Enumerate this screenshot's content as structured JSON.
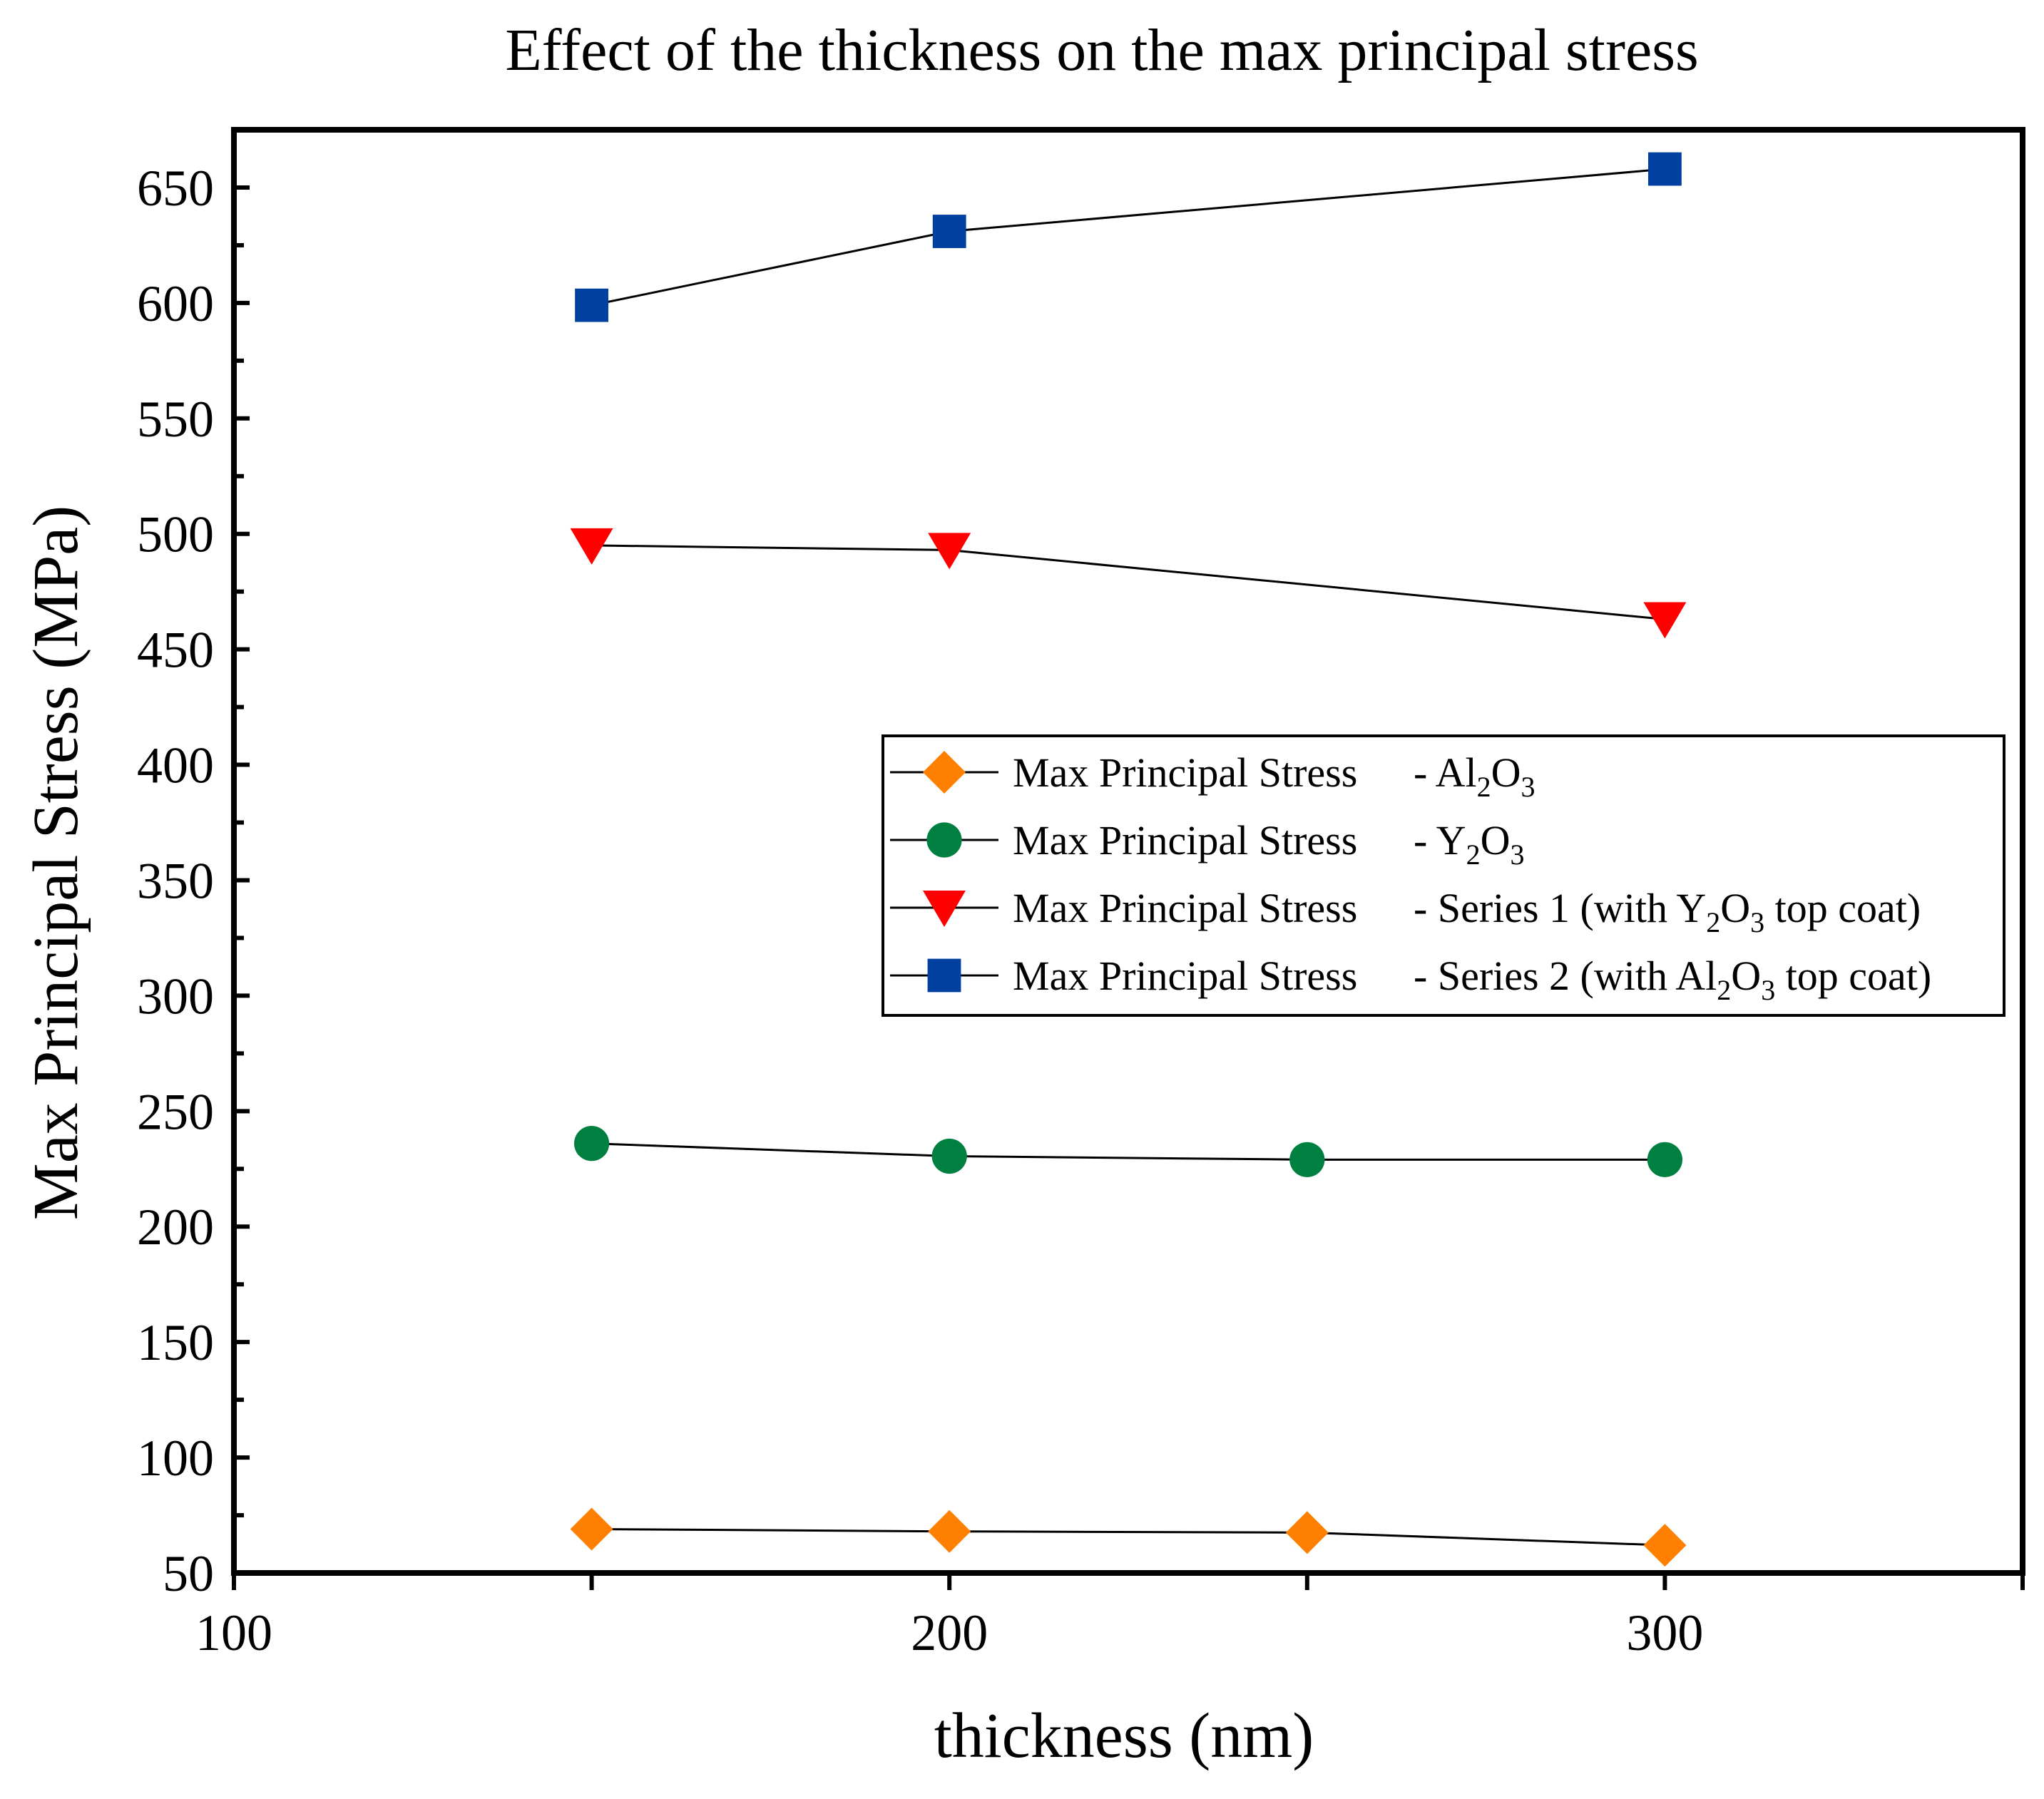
{
  "chart_data": {
    "type": "line",
    "title": "Effect of the thickness on the max principal stress",
    "xlabel": "thickness (nm)",
    "ylabel": "Max Principal Stress (MPa)",
    "xlim": [
      100,
      350
    ],
    "ylim": [
      50,
      675
    ],
    "xticks": [
      100,
      200,
      300
    ],
    "xtick_labels": [
      "100",
      "200",
      "300"
    ],
    "yticks": [
      50,
      100,
      150,
      200,
      250,
      300,
      350,
      400,
      450,
      500,
      550,
      600,
      650
    ],
    "ytick_labels": [
      "50",
      "100",
      "150",
      "200",
      "250",
      "300",
      "350",
      "400",
      "450",
      "500",
      "550",
      "600",
      "650"
    ],
    "legend_position": "center-right",
    "series": [
      {
        "name": "Max Principal Stress - Al2O3",
        "legend_main": "Max Principal Stress",
        "legend_suffix": [
          [
            "- Al",
            ""
          ],
          [
            "2",
            "sub"
          ],
          [
            "O",
            ""
          ],
          [
            "3",
            "sub"
          ]
        ],
        "marker": "diamond",
        "color": "#FF8000",
        "x": [
          150,
          200,
          250,
          300
        ],
        "values": [
          69,
          68,
          67.5,
          62
        ]
      },
      {
        "name": "Max Principal Stress - Y2O3",
        "legend_main": "Max Principal Stress",
        "legend_suffix": [
          [
            "- Y",
            ""
          ],
          [
            "2",
            "sub"
          ],
          [
            "O",
            ""
          ],
          [
            "3",
            "sub"
          ]
        ],
        "marker": "circle",
        "color": "#008040",
        "x": [
          150,
          200,
          250,
          300
        ],
        "values": [
          236,
          230.5,
          229,
          229
        ]
      },
      {
        "name": "Max Principal Stress - Series 1 (with Y2O3 top coat)",
        "legend_main": "Max Principal Stress",
        "legend_suffix": [
          [
            "- Series 1 (with Y",
            ""
          ],
          [
            "2",
            "sub"
          ],
          [
            "O",
            ""
          ],
          [
            "3",
            "sub"
          ],
          [
            " top coat)",
            ""
          ]
        ],
        "marker": "triangle-down",
        "color": "#FF0000",
        "x": [
          150,
          200,
          300
        ],
        "values": [
          495,
          493,
          463
        ]
      },
      {
        "name": "Max Principal Stress - Series 2 (with Al2O3 top coat)",
        "legend_main": "Max Principal Stress",
        "legend_suffix": [
          [
            "- Series 2 (with Al",
            ""
          ],
          [
            "2",
            "sub"
          ],
          [
            "O",
            ""
          ],
          [
            "3",
            "sub"
          ],
          [
            " top coat)",
            ""
          ]
        ],
        "marker": "square",
        "color": "#0040A0",
        "x": [
          150,
          200,
          300
        ],
        "values": [
          599,
          631,
          658
        ]
      }
    ]
  }
}
